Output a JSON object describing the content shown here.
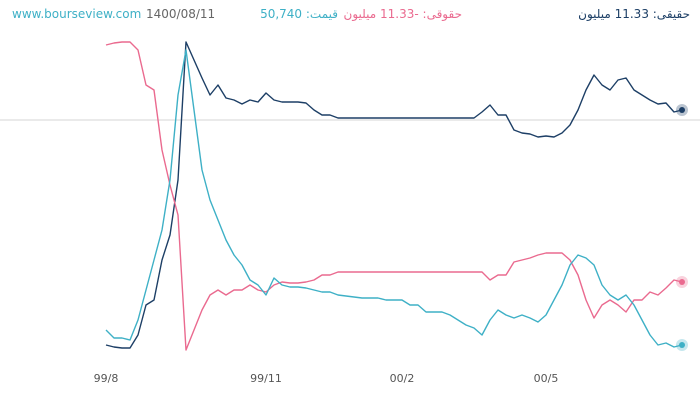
{
  "chart_data": {
    "type": "line",
    "source": "www.bourseview.com",
    "date": "1400/08/11",
    "categories": [
      "99/8",
      null,
      null,
      null,
      null,
      null,
      null,
      null,
      null,
      null,
      null,
      null,
      null,
      null,
      null,
      null,
      null,
      null,
      null,
      null,
      "99/11",
      null,
      null,
      null,
      null,
      null,
      null,
      null,
      null,
      null,
      null,
      null,
      null,
      null,
      null,
      null,
      null,
      "00/2",
      null,
      null,
      null,
      null,
      null,
      null,
      null,
      null,
      null,
      null,
      null,
      null,
      null,
      null,
      null,
      null,
      null,
      "00/5",
      null,
      null,
      null,
      null,
      null,
      null,
      null,
      null,
      null,
      null,
      null,
      null,
      null,
      null,
      null,
      null,
      null
    ],
    "ylim": [
      0,
      310
    ],
    "series": [
      {
        "name": "حقیقی: 11.33 میلیون",
        "color": "#1d3f66",
        "values": [
          5,
          3,
          2,
          2,
          15,
          45,
          50,
          90,
          115,
          170,
          308,
          290,
          272,
          255,
          265,
          252,
          250,
          246,
          250,
          248,
          257,
          250,
          248,
          248,
          248,
          247,
          240,
          235,
          235,
          232,
          232,
          232,
          232,
          232,
          232,
          232,
          232,
          232,
          232,
          232,
          232,
          232,
          232,
          232,
          232,
          232,
          232,
          238,
          245,
          235,
          235,
          220,
          217,
          216,
          213,
          214,
          213,
          217,
          225,
          240,
          260,
          275,
          265,
          260,
          270,
          272,
          260,
          255,
          250,
          246,
          247,
          238,
          240
        ]
      },
      {
        "name": "حقوقی: -11.33 میلیون",
        "color": "#ea6a8f",
        "values": [
          305,
          307,
          308,
          308,
          300,
          265,
          260,
          200,
          165,
          135,
          0,
          20,
          40,
          55,
          60,
          55,
          60,
          60,
          65,
          60,
          58,
          65,
          68,
          67,
          67,
          68,
          70,
          75,
          75,
          78,
          78,
          78,
          78,
          78,
          78,
          78,
          78,
          78,
          78,
          78,
          78,
          78,
          78,
          78,
          78,
          78,
          78,
          78,
          70,
          75,
          75,
          88,
          90,
          92,
          95,
          97,
          97,
          97,
          90,
          75,
          50,
          32,
          45,
          50,
          45,
          38,
          50,
          50,
          58,
          55,
          62,
          70,
          68
        ]
      },
      {
        "name": "قیمت: 50,740",
        "color": "#3eb0c6",
        "values": [
          20,
          12,
          12,
          10,
          30,
          60,
          90,
          120,
          170,
          255,
          300,
          240,
          180,
          150,
          130,
          110,
          95,
          85,
          70,
          65,
          55,
          72,
          65,
          63,
          63,
          62,
          60,
          58,
          58,
          55,
          54,
          53,
          52,
          52,
          52,
          50,
          50,
          50,
          45,
          45,
          38,
          38,
          38,
          35,
          30,
          25,
          22,
          15,
          30,
          40,
          35,
          32,
          35,
          32,
          28,
          35,
          50,
          65,
          85,
          95,
          92,
          85,
          65,
          55,
          50,
          55,
          45,
          30,
          15,
          5,
          7,
          3,
          5
        ]
      }
    ]
  }
}
